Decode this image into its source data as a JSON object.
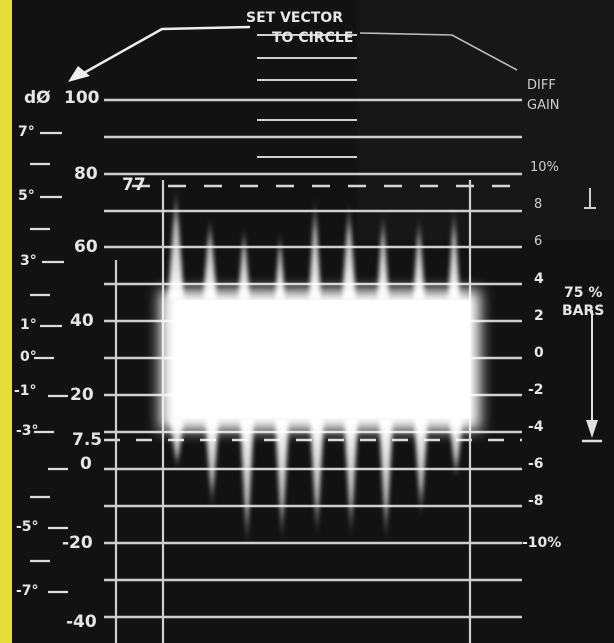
{
  "colors": {
    "border": "#e8dc3a",
    "background": "#0d0d0d",
    "trace": "#f4f4f4",
    "graticule": "#d8d8d8"
  },
  "annotations": {
    "set_vector_line1": "SET VECTOR",
    "set_vector_line2": "TO CIRCLE",
    "diff_gain_line1": "DIFF",
    "diff_gain_line2": "GAIN",
    "bars_line1": "75 %",
    "bars_line2": "BARS"
  },
  "left_phase_scale": {
    "header": "dØ",
    "labels": [
      "7°",
      "5°",
      "3°",
      "1°",
      "0°",
      "-1°",
      "-3°",
      "-5°",
      "-7°"
    ]
  },
  "ire_scale": {
    "labels": [
      "100",
      "80",
      "60",
      "40",
      "20",
      "7.5",
      "0",
      "-20",
      "-40"
    ],
    "marker": "77"
  },
  "right_gain_scale": {
    "labels": [
      "10%",
      "8",
      "6",
      "4",
      "2",
      "0",
      "-2",
      "-4",
      "-6",
      "-8",
      "-10%"
    ]
  }
}
